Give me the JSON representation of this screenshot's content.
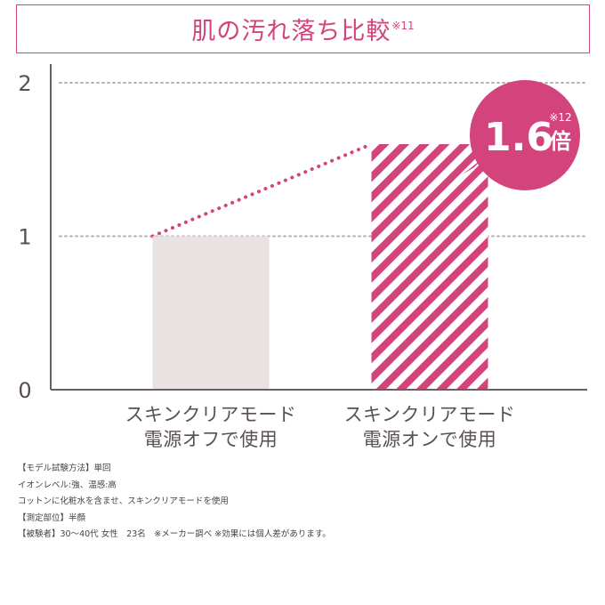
{
  "header": {
    "title": "肌の汚れ落ち比較",
    "title_note": "※11"
  },
  "colors": {
    "accent": "#d3437c",
    "bar_off": "#e8e2e2",
    "axis": "#6b5f5f",
    "grid": "#b8b0b0"
  },
  "chart_data": {
    "type": "bar",
    "categories": [
      [
        "スキンクリアモード",
        "電源オフで使用"
      ],
      [
        "スキンクリアモード",
        "電源オンで使用"
      ]
    ],
    "values": [
      1,
      1.6
    ],
    "ylim": [
      0,
      2
    ],
    "yticks": [
      "0",
      "1",
      "2"
    ],
    "grid": true,
    "bar_styles": [
      "solid-gray",
      "pink-stripes"
    ],
    "callout": {
      "value": "1.6",
      "note": "※12",
      "unit": "倍"
    }
  },
  "notes": [
    "【モデル試験方法】単回",
    "イオンレベル:強、温感:高",
    "コットンに化粧水を含ませ、スキンクリアモードを使用",
    "【測定部位】半顔",
    "【被験者】30～40代 女性　23名　※メーカー調べ ※効果には個人差があります。"
  ]
}
